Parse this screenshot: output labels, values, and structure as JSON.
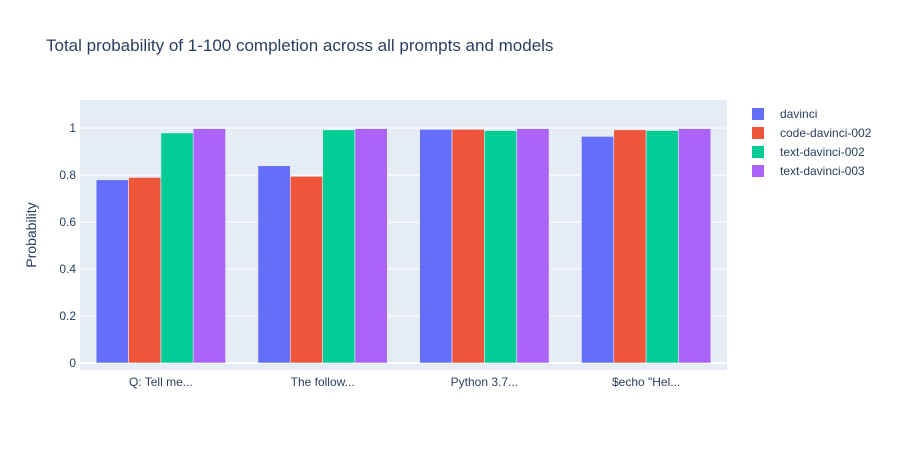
{
  "colors": {
    "plot_bg": "#E5ECF6",
    "grid": "#ffffff",
    "text": "#2a3f5f"
  },
  "chart_data": {
    "type": "bar",
    "title": "Total probability of 1-100 completion across all prompts and models",
    "xlabel": "",
    "ylabel": "Probability",
    "categories": [
      "Q: Tell me...",
      "The follow...",
      "Python 3.7...",
      "$echo \"Hel..."
    ],
    "ylim": [
      -0.03,
      1.12
    ],
    "yticks": [
      0,
      0.2,
      0.4,
      0.6,
      0.8,
      1
    ],
    "ytick_labels": [
      "0",
      "0.2",
      "0.4",
      "0.6",
      "0.8",
      "1"
    ],
    "grid": true,
    "legend_position": "top-right",
    "series": [
      {
        "name": "davinci",
        "color": "#636EFA",
        "values": [
          0.78,
          0.84,
          0.995,
          0.965
        ]
      },
      {
        "name": "code-davinci-002",
        "color": "#EF553B",
        "values": [
          0.79,
          0.795,
          0.995,
          0.993
        ]
      },
      {
        "name": "text-davinci-002",
        "color": "#00CC96",
        "values": [
          0.98,
          0.993,
          0.99,
          0.99
        ]
      },
      {
        "name": "text-davinci-003",
        "color": "#AB63FA",
        "values": [
          0.998,
          0.998,
          0.998,
          0.998
        ]
      }
    ]
  }
}
